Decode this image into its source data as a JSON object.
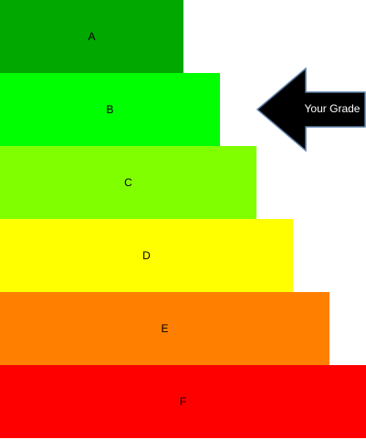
{
  "grades": [
    {
      "label": "A",
      "color": "#00a800"
    },
    {
      "label": "B",
      "color": "#00ff00"
    },
    {
      "label": "C",
      "color": "#80ff00"
    },
    {
      "label": "D",
      "color": "#ffff00"
    },
    {
      "label": "E",
      "color": "#ff8000"
    },
    {
      "label": "F",
      "color": "#ff0000"
    }
  ],
  "pointer": {
    "text": "Your Grade",
    "points_to": "B",
    "fill": "#000000",
    "stroke": "#5b7fa8"
  }
}
